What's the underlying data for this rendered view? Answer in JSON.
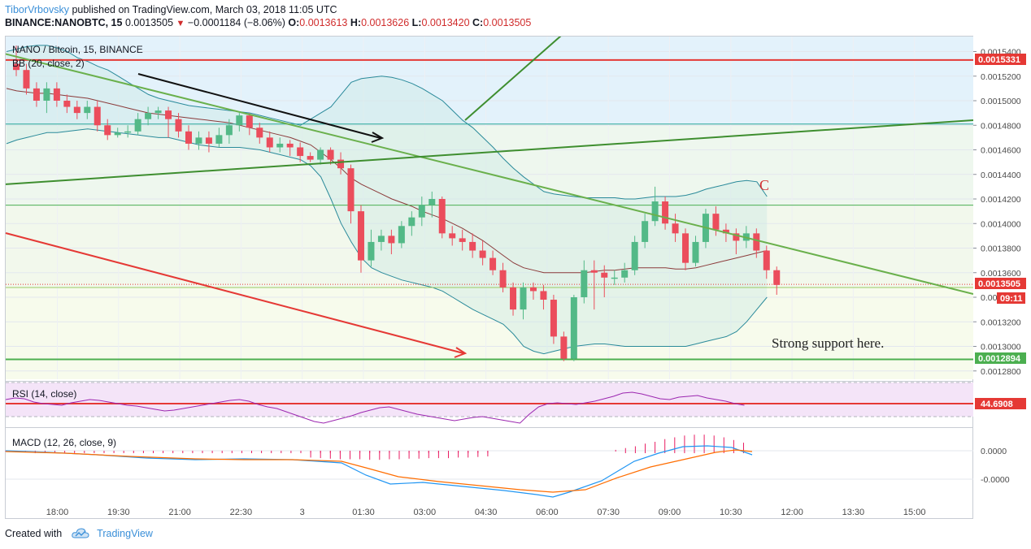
{
  "header": {
    "author": "TiborVrbovsky",
    "published": "published on TradingView.com, March 03, 2018 11:05 UTC",
    "symbol_line": "BINANCE:NANOBTC, 15",
    "last": "0.0013505",
    "change": "−0.0001184 (−8.06%)",
    "o_label": "O:",
    "o_value": "0.0013613",
    "h_label": "H:",
    "h_value": "0.0013626",
    "l_label": "L:",
    "l_value": "0.0013420",
    "c_label": "C:",
    "c_value": "0.0013505"
  },
  "footer": {
    "created_with": "Created with",
    "brand": "TradingView"
  },
  "chart_data": [
    {
      "type": "candlestick",
      "title": "NANO / Bitcoin, 15, BINANCE",
      "indicator_label": "BB (20, close, 2)",
      "x_tick_labels": [
        "18:00",
        "19:30",
        "21:00",
        "22:30",
        "3",
        "01:30",
        "03:00",
        "04:30",
        "06:00",
        "07:30",
        "09:00",
        "10:30",
        "12:00",
        "13:30",
        "15:00"
      ],
      "y_tick_labels": [
        "0.0015400",
        "0.0015200",
        "0.0015000",
        "0.0014800",
        "0.0014600",
        "0.0014400",
        "0.0014200",
        "0.0014000",
        "0.0013800",
        "0.0013600",
        "0.00134",
        "0.0013200",
        "0.0013000",
        "0.0012800"
      ],
      "ylim": [
        0.001268,
        0.00155
      ],
      "candles": [
        [
          0.00153,
          0.001525,
          0.001545,
          0.00152
        ],
        [
          0.001525,
          0.00151,
          0.00153,
          0.001505
        ],
        [
          0.00151,
          0.0015,
          0.001515,
          0.001495
        ],
        [
          0.0015,
          0.00151,
          0.001515,
          0.00149
        ],
        [
          0.00151,
          0.0015,
          0.001515,
          0.001495
        ],
        [
          0.0015,
          0.001495,
          0.001505,
          0.00149
        ],
        [
          0.001495,
          0.00149,
          0.0015,
          0.001485
        ],
        [
          0.00149,
          0.001495,
          0.0015,
          0.001485
        ],
        [
          0.001495,
          0.00148,
          0.0015,
          0.001475
        ],
        [
          0.00148,
          0.001472,
          0.001485,
          0.001468
        ],
        [
          0.001472,
          0.001474,
          0.001478,
          0.00147
        ],
        [
          0.001474,
          0.001475,
          0.00148,
          0.00147
        ],
        [
          0.001475,
          0.001485,
          0.00149,
          0.001472
        ],
        [
          0.001485,
          0.00149,
          0.001495,
          0.00148
        ],
        [
          0.00149,
          0.001492,
          0.001495,
          0.001485
        ],
        [
          0.001492,
          0.001485,
          0.001495,
          0.00147
        ],
        [
          0.001485,
          0.001475,
          0.00149,
          0.00147
        ],
        [
          0.001475,
          0.001465,
          0.00148,
          0.00146
        ],
        [
          0.001465,
          0.00147,
          0.001475,
          0.00146
        ],
        [
          0.00147,
          0.001465,
          0.001475,
          0.001458
        ],
        [
          0.001465,
          0.001472,
          0.001478,
          0.001462
        ],
        [
          0.001472,
          0.00148,
          0.001485,
          0.001465
        ],
        [
          0.00148,
          0.001488,
          0.00149,
          0.001475
        ],
        [
          0.001488,
          0.001478,
          0.00149,
          0.001472
        ],
        [
          0.001478,
          0.00147,
          0.001482,
          0.001465
        ],
        [
          0.00147,
          0.001462,
          0.001475,
          0.001458
        ],
        [
          0.001462,
          0.001465,
          0.00147,
          0.001458
        ],
        [
          0.001465,
          0.001462,
          0.001468,
          0.001455
        ],
        [
          0.001462,
          0.001455,
          0.001466,
          0.00145
        ],
        [
          0.001455,
          0.001452,
          0.001458,
          0.00145
        ],
        [
          0.001452,
          0.00146,
          0.001462,
          0.001448
        ],
        [
          0.00146,
          0.001452,
          0.001462,
          0.001448
        ],
        [
          0.001452,
          0.001445,
          0.001458,
          0.00144
        ],
        [
          0.001445,
          0.00141,
          0.001448,
          0.0014
        ],
        [
          0.00141,
          0.00137,
          0.001415,
          0.00136
        ],
        [
          0.00137,
          0.001385,
          0.001395,
          0.001365
        ],
        [
          0.001385,
          0.00139,
          0.001395,
          0.001378
        ],
        [
          0.00139,
          0.001384,
          0.001395,
          0.001375
        ],
        [
          0.001384,
          0.001398,
          0.001402,
          0.00138
        ],
        [
          0.001398,
          0.001405,
          0.00141,
          0.00139
        ],
        [
          0.001405,
          0.001415,
          0.001422,
          0.001398
        ],
        [
          0.001415,
          0.00142,
          0.001426,
          0.001405
        ],
        [
          0.00142,
          0.001392,
          0.001422,
          0.001388
        ],
        [
          0.001392,
          0.001388,
          0.001398,
          0.001382
        ],
        [
          0.001388,
          0.001385,
          0.001395,
          0.001378
        ],
        [
          0.001385,
          0.001378,
          0.001392,
          0.001372
        ],
        [
          0.001378,
          0.001372,
          0.001386,
          0.001366
        ],
        [
          0.001372,
          0.001362,
          0.001378,
          0.001358
        ],
        [
          0.001362,
          0.001348,
          0.001368,
          0.001344
        ],
        [
          0.001348,
          0.00133,
          0.001352,
          0.001325
        ],
        [
          0.00133,
          0.001348,
          0.001352,
          0.001322
        ],
        [
          0.001348,
          0.001345,
          0.001352,
          0.001338
        ],
        [
          0.001345,
          0.001338,
          0.00135,
          0.00133
        ],
        [
          0.001338,
          0.001308,
          0.001342,
          0.001302
        ],
        [
          0.001308,
          0.00129,
          0.001312,
          0.001288
        ],
        [
          0.00129,
          0.00134,
          0.001342,
          0.001288
        ],
        [
          0.00134,
          0.001362,
          0.00137,
          0.001335
        ],
        [
          0.001362,
          0.00136,
          0.00137,
          0.00133
        ],
        [
          0.00136,
          0.001356,
          0.001366,
          0.00134
        ],
        [
          0.001356,
          0.001356,
          0.001362,
          0.00135
        ],
        [
          0.001356,
          0.001362,
          0.001368,
          0.001352
        ],
        [
          0.001362,
          0.001385,
          0.00139,
          0.001358
        ],
        [
          0.001385,
          0.001402,
          0.001408,
          0.00138
        ],
        [
          0.001402,
          0.001418,
          0.00143,
          0.001398
        ],
        [
          0.001418,
          0.0014,
          0.001422,
          0.001395
        ],
        [
          0.0014,
          0.001392,
          0.001408,
          0.001385
        ],
        [
          0.001392,
          0.001368,
          0.001396,
          0.001362
        ],
        [
          0.001368,
          0.001385,
          0.00139,
          0.001365
        ],
        [
          0.001385,
          0.001408,
          0.001412,
          0.00138
        ],
        [
          0.001408,
          0.001395,
          0.001414,
          0.00139
        ],
        [
          0.001395,
          0.001392,
          0.0014,
          0.001385
        ],
        [
          0.001392,
          0.001386,
          0.001396,
          0.001375
        ],
        [
          0.001386,
          0.001392,
          0.001398,
          0.00138
        ],
        [
          0.001392,
          0.001378,
          0.001396,
          0.001372
        ],
        [
          0.001378,
          0.001362,
          0.001382,
          0.001355
        ],
        [
          0.001362,
          0.00135,
          0.001365,
          0.001342
        ]
      ],
      "bollinger": {
        "upper_label_note": "",
        "upper": [
          0.00154,
          0.001542,
          0.001544,
          0.001545,
          0.001545,
          0.001543,
          0.00154,
          0.001535,
          0.001532,
          0.001528,
          0.001525,
          0.00152,
          0.001515,
          0.00151,
          0.001505,
          0.001502,
          0.0015,
          0.001498,
          0.001496,
          0.001495,
          0.001494,
          0.001493,
          0.001492,
          0.001491,
          0.00149,
          0.001488,
          0.001486,
          0.001484,
          0.001482,
          0.00148,
          0.001485,
          0.00149,
          0.001495,
          0.001505,
          0.001515,
          0.001518,
          0.001519,
          0.00152,
          0.001519,
          0.001517,
          0.001514,
          0.00151,
          0.001505,
          0.0015,
          0.001492,
          0.001484,
          0.001478,
          0.00147,
          0.001462,
          0.001453,
          0.001445,
          0.001438,
          0.001432,
          0.001426,
          0.001424,
          0.001423,
          0.001422,
          0.001421,
          0.001421,
          0.001421,
          0.001421,
          0.00142,
          0.00142,
          0.001421,
          0.001422,
          0.001422,
          0.001422,
          0.001423,
          0.001425,
          0.001428,
          0.00143,
          0.001432,
          0.001434,
          0.001435,
          0.001434,
          0.001422
        ],
        "middle": [
          0.00151,
          0.001508,
          0.001507,
          0.001506,
          0.001506,
          0.001505,
          0.001504,
          0.001503,
          0.001502,
          0.0015,
          0.001498,
          0.001496,
          0.001494,
          0.001492,
          0.00149,
          0.001489,
          0.001488,
          0.001487,
          0.001486,
          0.001485,
          0.001484,
          0.001483,
          0.001482,
          0.00148,
          0.001478,
          0.001476,
          0.001474,
          0.001472,
          0.00147,
          0.001467,
          0.001464,
          0.001458,
          0.001452,
          0.001445,
          0.001437,
          0.001432,
          0.001428,
          0.001424,
          0.00142,
          0.001417,
          0.001414,
          0.00141,
          0.001407,
          0.001404,
          0.0014,
          0.001396,
          0.001391,
          0.001386,
          0.00138,
          0.001374,
          0.001368,
          0.001364,
          0.001362,
          0.00136,
          0.00136,
          0.00136,
          0.00136,
          0.00136,
          0.001361,
          0.001362,
          0.001362,
          0.001363,
          0.001364,
          0.001364,
          0.001364,
          0.001364,
          0.001363,
          0.001363,
          0.001364,
          0.001366,
          0.001368,
          0.00137,
          0.001372,
          0.001374,
          0.001376,
          0.001378
        ],
        "lower": [
          0.001465,
          0.001468,
          0.00147,
          0.001472,
          0.001474,
          0.001474,
          0.001475,
          0.001476,
          0.001477,
          0.001476,
          0.001475,
          0.001474,
          0.001473,
          0.001472,
          0.001471,
          0.00147,
          0.00147,
          0.001468,
          0.001466,
          0.001464,
          0.001463,
          0.001462,
          0.001462,
          0.001462,
          0.001461,
          0.00146,
          0.001458,
          0.001456,
          0.001454,
          0.001452,
          0.001447,
          0.001438,
          0.00142,
          0.0014,
          0.001385,
          0.001372,
          0.001364,
          0.00136,
          0.001357,
          0.001354,
          0.001352,
          0.00135,
          0.001348,
          0.001345,
          0.00134,
          0.001335,
          0.00133,
          0.001326,
          0.001322,
          0.001318,
          0.00131,
          0.0013,
          0.001296,
          0.001294,
          0.001296,
          0.001298,
          0.0013,
          0.001301,
          0.001302,
          0.001302,
          0.001301,
          0.0013,
          0.0013,
          0.0013,
          0.0013,
          0.0013,
          0.0013,
          0.0013,
          0.001302,
          0.001304,
          0.001306,
          0.001308,
          0.001312,
          0.00132,
          0.00133,
          0.00134
        ]
      },
      "horizontal_levels": [
        {
          "value": 0.0015331,
          "label": "0.0015331",
          "color": "#e53935"
        },
        {
          "value": 0.001481,
          "label": "",
          "color": "#26a69a"
        },
        {
          "value": 0.001415,
          "label": "",
          "color": "#4caf50"
        },
        {
          "value": 0.0013505,
          "label": "0.0013505",
          "color": "#e53935"
        },
        {
          "value": 0.0012894,
          "label": "0.0012894",
          "color": "#4caf50"
        }
      ],
      "countdown": "09:11",
      "annotations": [
        "C",
        "Strong support here."
      ]
    },
    {
      "type": "line",
      "title": "RSI (14, close)",
      "level_label": "44.6908",
      "color": "#9c27b0"
    },
    {
      "type": "line",
      "title": "MACD (12, 26, close, 9)",
      "y_tick_labels": [
        "0.0000",
        "-0.0000"
      ],
      "series": [
        {
          "name": "",
          "color": "#2196f3"
        },
        {
          "name": "",
          "color": "#ff6d00"
        }
      ],
      "histogram_color": "#e91e63"
    }
  ]
}
